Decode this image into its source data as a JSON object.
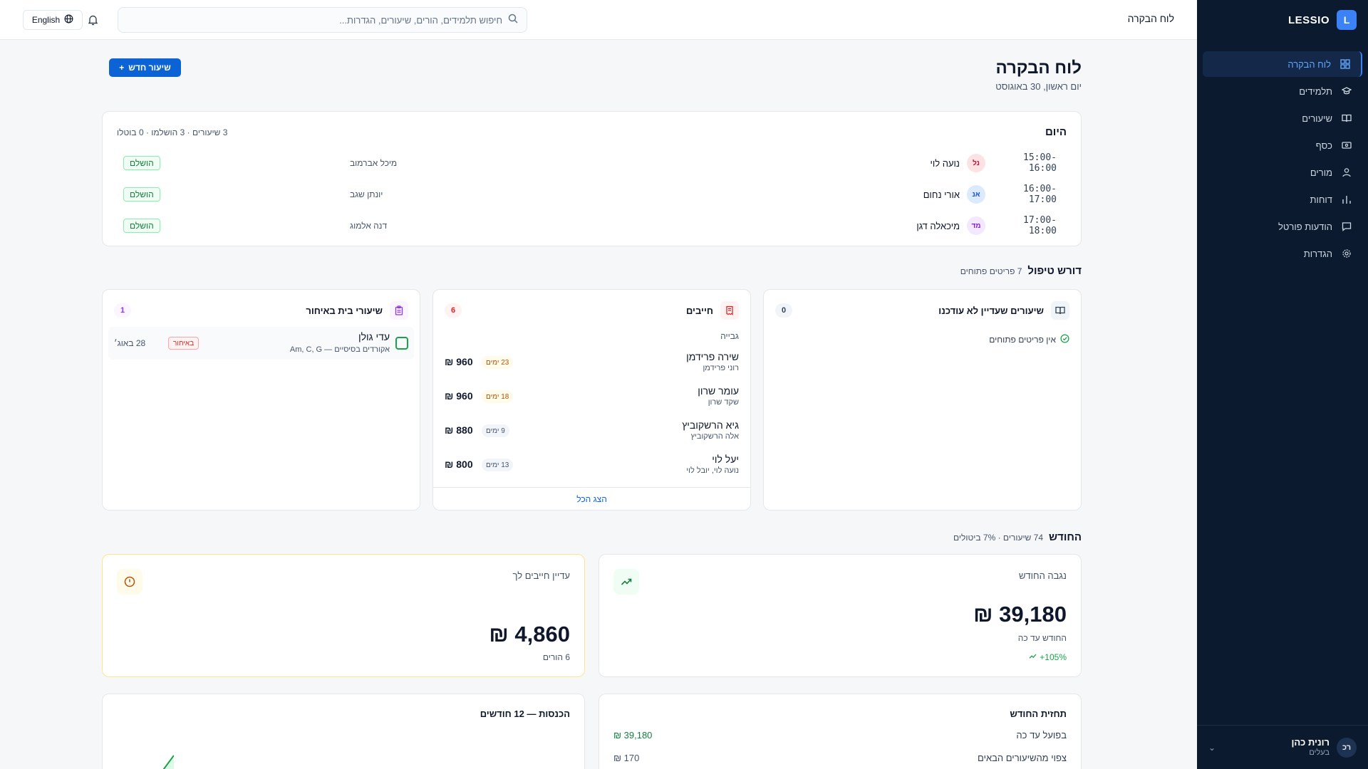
{
  "sidebar": {
    "brand_letter": "L",
    "brand_name": "LESSIO",
    "items": [
      {
        "label": "לוח הבקרה"
      },
      {
        "label": "תלמידים"
      },
      {
        "label": "שיעורים"
      },
      {
        "label": "כסף"
      },
      {
        "label": "מורים"
      },
      {
        "label": "דוחות"
      },
      {
        "label": "הודעות פורטל"
      },
      {
        "label": "הגדרות"
      }
    ],
    "user": {
      "initials": "רכ",
      "name": "רונית כהן",
      "role": "בעלים"
    }
  },
  "header": {
    "title": "לוח הבקרה",
    "search_placeholder": "חיפוש תלמידים, הורים, שיעורים, הגדרות...",
    "language_label": "English"
  },
  "page": {
    "title": "לוח הבקרה",
    "date": "יום ראשון, 30 באוגוסט",
    "new_lesson_label": "שיעור חדש"
  },
  "today": {
    "title": "היום",
    "summary": "3 שיעורים · 3 הושלמו · 0 בוטלו",
    "lessons": [
      {
        "time": "15:00-16:00",
        "initials": "נל",
        "student": "נועה לוי",
        "teacher": "מיכל אברמוב",
        "status": "הושלם",
        "color_bg": "#fde2e4",
        "color_fg": "#be123c"
      },
      {
        "time": "16:00-17:00",
        "initials": "אנ",
        "student": "אורי נחום",
        "teacher": "יונתן שגב",
        "status": "הושלם",
        "color_bg": "#dbeafe",
        "color_fg": "#1d4ed8"
      },
      {
        "time": "17:00-18:00",
        "initials": "מד",
        "student": "מיכאלה דגן",
        "teacher": "דנה אלמוג",
        "status": "הושלם",
        "color_bg": "#f3e8ff",
        "color_fg": "#7e22ce"
      }
    ]
  },
  "attention": {
    "title": "דורש טיפול",
    "meta": "7 פריטים פתוחים",
    "unupdated": {
      "title": "שיעורים שעדיין לא עודכנו",
      "count": "0",
      "empty": "אין פריטים פתוחים"
    },
    "debtors": {
      "title": "חייבים",
      "count": "6",
      "subtitle": "גבייה",
      "rows": [
        {
          "name": "שירה פרידמן",
          "parent": "רוני פרידמן",
          "days": "23 ימים",
          "amount": "₪ 960",
          "level": "warn"
        },
        {
          "name": "עומר שרון",
          "parent": "שקד שרון",
          "days": "18 ימים",
          "amount": "₪ 960",
          "level": "warn"
        },
        {
          "name": "גיא הרשקוביץ",
          "parent": "אלה הרשקוביץ",
          "days": "9 ימים",
          "amount": "₪ 880",
          "level": "neutral"
        },
        {
          "name": "יעל לוי",
          "parent": "נועה לוי, יובל לוי",
          "days": "13 ימים",
          "amount": "₪ 800",
          "level": "neutral"
        }
      ],
      "show_all": "הצג הכל"
    },
    "homework": {
      "title": "שיעורי בית באיחור",
      "count": "1",
      "rows": [
        {
          "name": "עדי גולן",
          "desc": "אקורדים בסיסיים — Am, C, G",
          "status": "באיחור",
          "date": "28 באוג׳"
        }
      ]
    }
  },
  "month": {
    "title": "החודש",
    "meta": "74 שיעורים · 7% ביטולים",
    "collected": {
      "title": "נגבה החודש",
      "value": "₪ 39,180",
      "sub": "החודש עד כה",
      "delta": "+105%"
    },
    "owed": {
      "title": "עדיין חייבים לך",
      "value": "₪ 4,860",
      "sub": "6 הורים"
    }
  },
  "forecast": {
    "title": "תחזית החודש",
    "rows": [
      {
        "label": "בפועל עד כה",
        "value": "₪ 39,180"
      },
      {
        "label": "צפוי מהשיעורים הבאים",
        "value": "₪ 170"
      }
    ]
  },
  "revenue": {
    "title": "הכנסות — 12 חודשים"
  },
  "colors": {
    "accent": "#0b63d6",
    "sidebar_bg": "#0b1a2e",
    "success": "#16a34a",
    "danger": "#dc2626"
  }
}
